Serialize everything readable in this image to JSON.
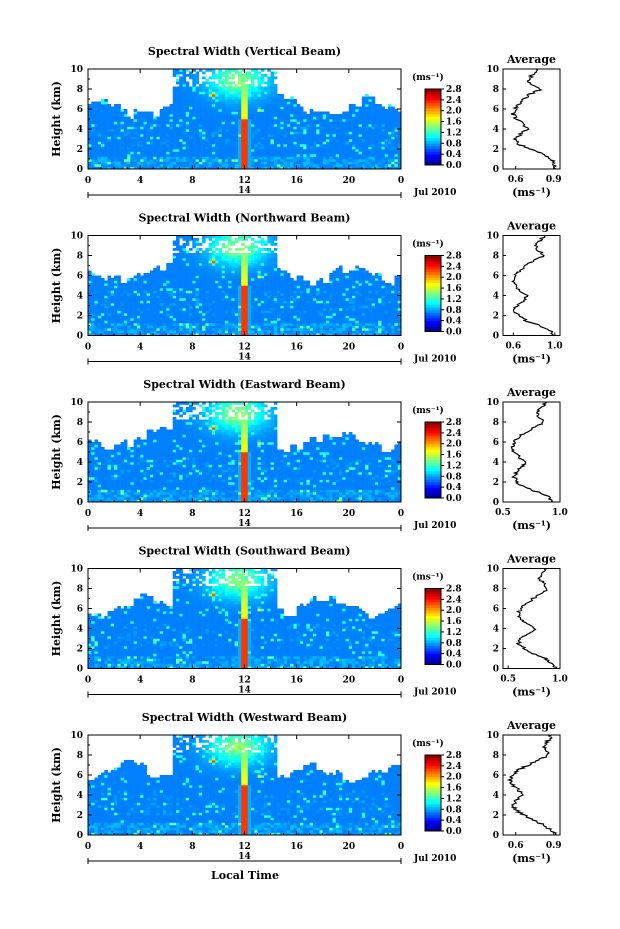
{
  "figure": {
    "xlabel": "Local Time",
    "ylabel": "Height (km)",
    "date_label": "Jul 2010",
    "day_label": "14",
    "colorbar_unit": "(ms⁻¹)",
    "avg_title": "Average",
    "avg_xlabel": "(ms⁻¹)"
  },
  "chart_data": [
    {
      "type": "heatmap",
      "title": "Spectral Width (Vertical Beam)",
      "xlabel": "Local Time",
      "ylabel": "Height (km)",
      "x_ticks": [
        "0",
        "4",
        "8",
        "12",
        "16",
        "20",
        "0"
      ],
      "xlim": [
        0,
        24
      ],
      "y_ticks": [
        "0",
        "2",
        "4",
        "6",
        "8",
        "10"
      ],
      "ylim": [
        0,
        10
      ],
      "colorbar": {
        "label": "(ms⁻¹)",
        "ticks": [
          "0.0",
          "0.4",
          "0.8",
          "1.2",
          "1.6",
          "2.0",
          "2.4",
          "2.8"
        ],
        "range": [
          0,
          2.8
        ]
      },
      "average_profile": {
        "title": "Average",
        "xlabel": "(ms⁻¹)",
        "x_ticks": [
          "0.6",
          "0.9"
        ],
        "xlim": [
          0.5,
          0.95
        ],
        "height_km": [
          0,
          0.5,
          1,
          1.5,
          2,
          2.5,
          3,
          3.5,
          4,
          4.5,
          5,
          5.5,
          6,
          6.5,
          7,
          7.5,
          8,
          8.5,
          9,
          9.5,
          10
        ],
        "value": [
          0.91,
          0.9,
          0.88,
          0.82,
          0.72,
          0.62,
          0.6,
          0.64,
          0.7,
          0.66,
          0.6,
          0.58,
          0.6,
          0.62,
          0.66,
          0.72,
          0.8,
          0.72,
          0.7,
          0.74,
          0.78
        ]
      }
    },
    {
      "type": "heatmap",
      "title": "Spectral Width (Northward Beam)",
      "xlabel": "Local Time",
      "ylabel": "Height (km)",
      "x_ticks": [
        "0",
        "4",
        "8",
        "12",
        "16",
        "20",
        "0"
      ],
      "xlim": [
        0,
        24
      ],
      "y_ticks": [
        "0",
        "2",
        "4",
        "6",
        "8",
        "10"
      ],
      "ylim": [
        0,
        10
      ],
      "colorbar": {
        "label": "(ms⁻¹)",
        "ticks": [
          "0.0",
          "0.4",
          "0.8",
          "1.2",
          "1.6",
          "2.0",
          "2.4",
          "2.8"
        ],
        "range": [
          0,
          2.8
        ]
      },
      "average_profile": {
        "title": "Average",
        "xlabel": "(ms⁻¹)",
        "x_ticks": [
          "0.6",
          "1.0"
        ],
        "xlim": [
          0.5,
          1.05
        ],
        "height_km": [
          0,
          0.5,
          1,
          1.5,
          2,
          2.5,
          3,
          3.5,
          4,
          4.5,
          5,
          5.5,
          6,
          6.5,
          7,
          7.5,
          8,
          8.5,
          9,
          9.5,
          10
        ],
        "value": [
          1.0,
          0.95,
          0.85,
          0.72,
          0.66,
          0.6,
          0.64,
          0.7,
          0.74,
          0.66,
          0.62,
          0.6,
          0.62,
          0.66,
          0.72,
          0.8,
          0.9,
          0.84,
          0.82,
          0.86,
          0.9
        ]
      }
    },
    {
      "type": "heatmap",
      "title": "Spectral Width (Eastward Beam)",
      "xlabel": "Local Time",
      "ylabel": "Height (km)",
      "x_ticks": [
        "0",
        "4",
        "8",
        "12",
        "16",
        "20",
        "0"
      ],
      "xlim": [
        0,
        24
      ],
      "y_ticks": [
        "0",
        "2",
        "4",
        "6",
        "8",
        "10"
      ],
      "ylim": [
        0,
        10
      ],
      "colorbar": {
        "label": "(ms⁻¹)",
        "ticks": [
          "0.0",
          "0.4",
          "0.8",
          "1.2",
          "1.6",
          "2.0",
          "2.4",
          "2.8"
        ],
        "range": [
          0,
          2.8
        ]
      },
      "average_profile": {
        "title": "Average",
        "xlabel": "(ms⁻¹)",
        "x_ticks": [
          "0.5",
          "1.0"
        ],
        "xlim": [
          0.5,
          1.0
        ],
        "height_km": [
          0,
          0.5,
          1,
          1.5,
          2,
          2.5,
          3,
          3.5,
          4,
          4.5,
          5,
          5.5,
          6,
          6.5,
          7,
          7.5,
          8,
          8.5,
          9,
          9.5,
          10
        ],
        "value": [
          0.94,
          0.9,
          0.8,
          0.68,
          0.62,
          0.6,
          0.62,
          0.66,
          0.7,
          0.64,
          0.6,
          0.58,
          0.6,
          0.64,
          0.7,
          0.78,
          0.86,
          0.82,
          0.8,
          0.84,
          0.88
        ]
      }
    },
    {
      "type": "heatmap",
      "title": "Spectral Width (Southward Beam)",
      "xlabel": "Local Time",
      "ylabel": "Height (km)",
      "x_ticks": [
        "0",
        "4",
        "8",
        "12",
        "16",
        "20",
        "0"
      ],
      "xlim": [
        0,
        24
      ],
      "y_ticks": [
        "0",
        "2",
        "4",
        "6",
        "8",
        "10"
      ],
      "ylim": [
        0,
        10
      ],
      "colorbar": {
        "label": "(ms⁻¹)",
        "ticks": [
          "0.0",
          "0.4",
          "0.8",
          "1.2",
          "1.6",
          "2.0",
          "2.4",
          "2.8"
        ],
        "range": [
          0,
          2.8
        ]
      },
      "average_profile": {
        "title": "Average",
        "xlabel": "(ms⁻¹)",
        "x_ticks": [
          "0.5",
          "1.0"
        ],
        "xlim": [
          0.45,
          1.0
        ],
        "height_km": [
          0,
          0.5,
          1,
          1.5,
          2,
          2.5,
          3,
          3.5,
          4,
          4.5,
          5,
          5.5,
          6,
          6.5,
          7,
          7.5,
          8,
          8.5,
          9,
          9.5,
          10
        ],
        "value": [
          0.96,
          0.92,
          0.86,
          0.74,
          0.66,
          0.6,
          0.62,
          0.7,
          0.76,
          0.68,
          0.62,
          0.6,
          0.62,
          0.68,
          0.74,
          0.82,
          0.88,
          0.84,
          0.8,
          0.82,
          0.86
        ]
      }
    },
    {
      "type": "heatmap",
      "title": "Spectral Width (Westward Beam)",
      "xlabel": "Local Time",
      "ylabel": "Height (km)",
      "x_ticks": [
        "0",
        "4",
        "8",
        "12",
        "16",
        "20",
        "0"
      ],
      "xlim": [
        0,
        24
      ],
      "y_ticks": [
        "0",
        "2",
        "4",
        "6",
        "8",
        "10"
      ],
      "ylim": [
        0,
        10
      ],
      "colorbar": {
        "label": "(ms⁻¹)",
        "ticks": [
          "0.0",
          "0.4",
          "0.8",
          "1.2",
          "1.6",
          "2.0",
          "2.4",
          "2.8"
        ],
        "range": [
          0,
          2.8
        ]
      },
      "average_profile": {
        "title": "Average",
        "xlabel": "(ms⁻¹)",
        "x_ticks": [
          "0.6",
          "0.9"
        ],
        "xlim": [
          0.5,
          0.95
        ],
        "height_km": [
          0,
          0.5,
          1,
          1.5,
          2,
          2.5,
          3,
          3.5,
          4,
          4.5,
          5,
          5.5,
          6,
          6.5,
          7,
          7.5,
          8,
          8.5,
          9,
          9.5,
          10
        ],
        "value": [
          0.92,
          0.88,
          0.82,
          0.74,
          0.66,
          0.6,
          0.58,
          0.6,
          0.66,
          0.62,
          0.58,
          0.56,
          0.58,
          0.62,
          0.7,
          0.78,
          0.86,
          0.84,
          0.82,
          0.86,
          0.88
        ]
      }
    }
  ]
}
